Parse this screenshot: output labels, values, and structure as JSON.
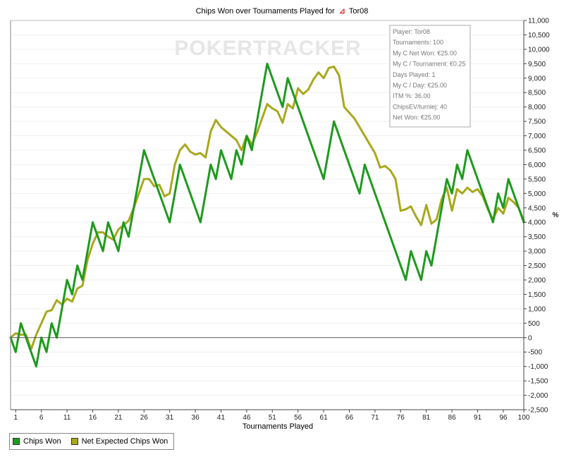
{
  "title_prefix": "Chips Won over Tournaments Played for",
  "player_name": "Tor08",
  "watermark": "POKERTRACKER",
  "info_box": [
    "Player: Tor08",
    "Tournaments: 100",
    "My C Net Won: €25.00",
    "My C / Tournament: €0.25",
    "Days Played: 1",
    "My C / Day: €25.00",
    "ITM %: 36.00",
    "ChipsEV/turniej: 40",
    "Net Won: €25.00"
  ],
  "colors": {
    "chips_won": "#1e9a1e",
    "expected": "#a8a81e",
    "zero_line": "#555555",
    "grid": "#f0f0f0"
  },
  "legend": {
    "chips_won": "Chips Won",
    "expected": "Net Expected Chips Won"
  },
  "chart_data": {
    "type": "line",
    "title": "Chips Won over Tournaments Played for Tor08",
    "xlabel": "Tournaments Played",
    "ylabel": "",
    "y2label": "%",
    "xlim": [
      0,
      100
    ],
    "ylim": [
      -2500,
      11000
    ],
    "x_ticks": [
      1,
      6,
      11,
      16,
      21,
      26,
      31,
      36,
      41,
      46,
      51,
      56,
      61,
      66,
      71,
      76,
      81,
      86,
      91,
      96,
      100
    ],
    "y_ticks": [
      -2500,
      -2000,
      -1500,
      -1000,
      -500,
      0,
      500,
      1000,
      1500,
      2000,
      2500,
      3000,
      3500,
      4000,
      4500,
      5000,
      5500,
      6000,
      6500,
      7000,
      7500,
      8000,
      8500,
      9000,
      9500,
      10000,
      10500,
      11000
    ],
    "y_tick_labels": [
      "-2,500",
      "-2,000",
      "-1,500",
      "-1,000",
      "-500",
      "0",
      "500",
      "1,000",
      "1,500",
      "2,000",
      "2,500",
      "3,000",
      "3,500",
      "4,000",
      "4,500",
      "5,000",
      "5,500",
      "6,000",
      "6,500",
      "7,000",
      "7,500",
      "8,000",
      "8,500",
      "9,000",
      "9,500",
      "10,000",
      "10,500",
      "11,000"
    ],
    "legend_position": "bottom-left",
    "series": [
      {
        "name": "Chips Won",
        "x": [
          0,
          1,
          2,
          3,
          4,
          5,
          6,
          7,
          8,
          9,
          10,
          11,
          12,
          13,
          14,
          15,
          16,
          17,
          18,
          19,
          20,
          21,
          22,
          23,
          24,
          25,
          26,
          27,
          28,
          29,
          30,
          31,
          32,
          33,
          34,
          35,
          36,
          37,
          38,
          39,
          40,
          41,
          42,
          43,
          44,
          45,
          46,
          47,
          48,
          49,
          50,
          51,
          52,
          53,
          54,
          55,
          56,
          57,
          58,
          59,
          60,
          61,
          62,
          63,
          64,
          65,
          66,
          67,
          68,
          69,
          70,
          71,
          72,
          73,
          74,
          75,
          76,
          77,
          78,
          79,
          80,
          81,
          82,
          83,
          84,
          85,
          86,
          87,
          88,
          89,
          90,
          91,
          92,
          93,
          94,
          95,
          96,
          97,
          98,
          99,
          100
        ],
        "values": [
          0,
          -500,
          500,
          0,
          -500,
          -1000,
          0,
          -500,
          500,
          0,
          1000,
          2000,
          1500,
          2500,
          2000,
          3000,
          4000,
          3500,
          3000,
          4000,
          3500,
          3000,
          4000,
          3500,
          4500,
          5500,
          6500,
          6000,
          5500,
          5000,
          4500,
          4000,
          5000,
          6000,
          5500,
          5000,
          4500,
          4000,
          5000,
          6000,
          5500,
          6500,
          6000,
          5500,
          6500,
          6000,
          7000,
          6500,
          7500,
          8500,
          9500,
          9000,
          8500,
          8000,
          9000,
          8500,
          8000,
          7500,
          7000,
          6500,
          6000,
          5500,
          6500,
          7500,
          7000,
          6500,
          6000,
          5500,
          5000,
          6000,
          5500,
          5000,
          4500,
          4000,
          3500,
          3000,
          2500,
          2000,
          3000,
          2500,
          2000,
          3000,
          2500,
          3500,
          4500,
          5500,
          5000,
          6000,
          5500,
          6500,
          6000,
          5500,
          5000,
          4500,
          4000,
          5000,
          4500,
          5500,
          5000,
          4500,
          4000
        ]
      },
      {
        "name": "Net Expected Chips Won",
        "x": [
          0,
          1,
          2,
          3,
          4,
          5,
          6,
          7,
          8,
          9,
          10,
          11,
          12,
          13,
          14,
          15,
          16,
          17,
          18,
          19,
          20,
          21,
          22,
          23,
          24,
          25,
          26,
          27,
          28,
          29,
          30,
          31,
          32,
          33,
          34,
          35,
          36,
          37,
          38,
          39,
          40,
          41,
          42,
          43,
          44,
          45,
          46,
          47,
          48,
          49,
          50,
          51,
          52,
          53,
          54,
          55,
          56,
          57,
          58,
          59,
          60,
          61,
          62,
          63,
          64,
          65,
          66,
          67,
          68,
          69,
          70,
          71,
          72,
          73,
          74,
          75,
          76,
          77,
          78,
          79,
          80,
          81,
          82,
          83,
          84,
          85,
          86,
          87,
          88,
          89,
          90,
          91,
          92,
          93,
          94,
          95,
          96,
          97,
          98,
          99,
          100
        ],
        "values": [
          0,
          150,
          100,
          100,
          -400,
          100,
          500,
          900,
          950,
          1300,
          1150,
          1350,
          1250,
          1700,
          1800,
          2700,
          3250,
          3650,
          3650,
          3500,
          3400,
          3750,
          3900,
          4050,
          4500,
          5000,
          5500,
          5500,
          5250,
          5300,
          4900,
          5000,
          6000,
          6500,
          6700,
          6450,
          6350,
          6400,
          6250,
          7150,
          7550,
          7300,
          7150,
          7000,
          6850,
          6500,
          7000,
          6700,
          7100,
          7600,
          8100,
          7950,
          7850,
          7450,
          8100,
          7950,
          8650,
          8450,
          8600,
          8950,
          9200,
          9000,
          9350,
          9400,
          9100,
          8000,
          7800,
          7600,
          7300,
          7000,
          6700,
          6400,
          5900,
          5950,
          5800,
          5500,
          4400,
          4450,
          4550,
          4200,
          3900,
          4600,
          3950,
          4100,
          4800,
          5200,
          4400,
          5150,
          5000,
          5200,
          5050,
          5150,
          4900,
          4450,
          4100,
          4500,
          4300,
          4850,
          4700,
          4500,
          4050
        ]
      }
    ]
  }
}
